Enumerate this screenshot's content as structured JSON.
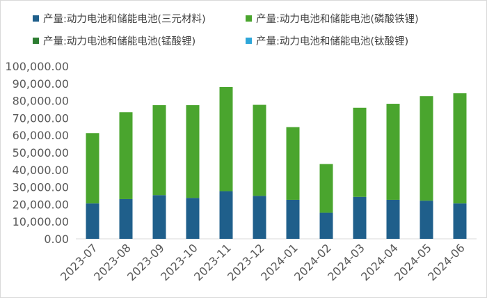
{
  "chart_data": {
    "type": "bar",
    "stacked": true,
    "categories": [
      "2023-07",
      "2023-08",
      "2023-09",
      "2023-10",
      "2023-11",
      "2023-12",
      "2024-01",
      "2024-02",
      "2024-03",
      "2024-04",
      "2024-05",
      "2024-06"
    ],
    "series": [
      {
        "name": "产量:动力电池和储能电池(三元材料)",
        "color": "#1f5f8b",
        "values": [
          20500,
          23000,
          25300,
          23700,
          27600,
          24900,
          22600,
          15100,
          24300,
          22600,
          22100,
          20500
        ]
      },
      {
        "name": "产量:动力电池和储能电池(磷酸铁锂)",
        "color": "#4aa52e",
        "values": [
          40700,
          50300,
          52100,
          53700,
          60300,
          52700,
          42100,
          28200,
          51600,
          55600,
          60500,
          63800
        ]
      },
      {
        "name": "产量:动力电池和储能电池(锰酸锂)",
        "color": "#2d7d32",
        "values": [
          0,
          0,
          0,
          0,
          0,
          0,
          0,
          0,
          0,
          0,
          0,
          0
        ]
      },
      {
        "name": "产量:动力电池和储能电池(钛酸锂)",
        "color": "#2ea6d9",
        "values": [
          0,
          0,
          0,
          0,
          0,
          0,
          0,
          0,
          0,
          0,
          0,
          0
        ]
      }
    ],
    "ylim": [
      0,
      100000
    ],
    "yticks": [
      0,
      10000,
      20000,
      30000,
      40000,
      50000,
      60000,
      70000,
      80000,
      90000,
      100000
    ],
    "ytick_labels": [
      "0.00",
      "10,000.00",
      "20,000.00",
      "30,000.00",
      "40,000.00",
      "50,000.00",
      "60,000.00",
      "70,000.00",
      "80,000.00",
      "90,000.00",
      "100,000.00"
    ],
    "title": "",
    "xlabel": "",
    "ylabel": "",
    "grid": false,
    "legend_position": "top"
  }
}
